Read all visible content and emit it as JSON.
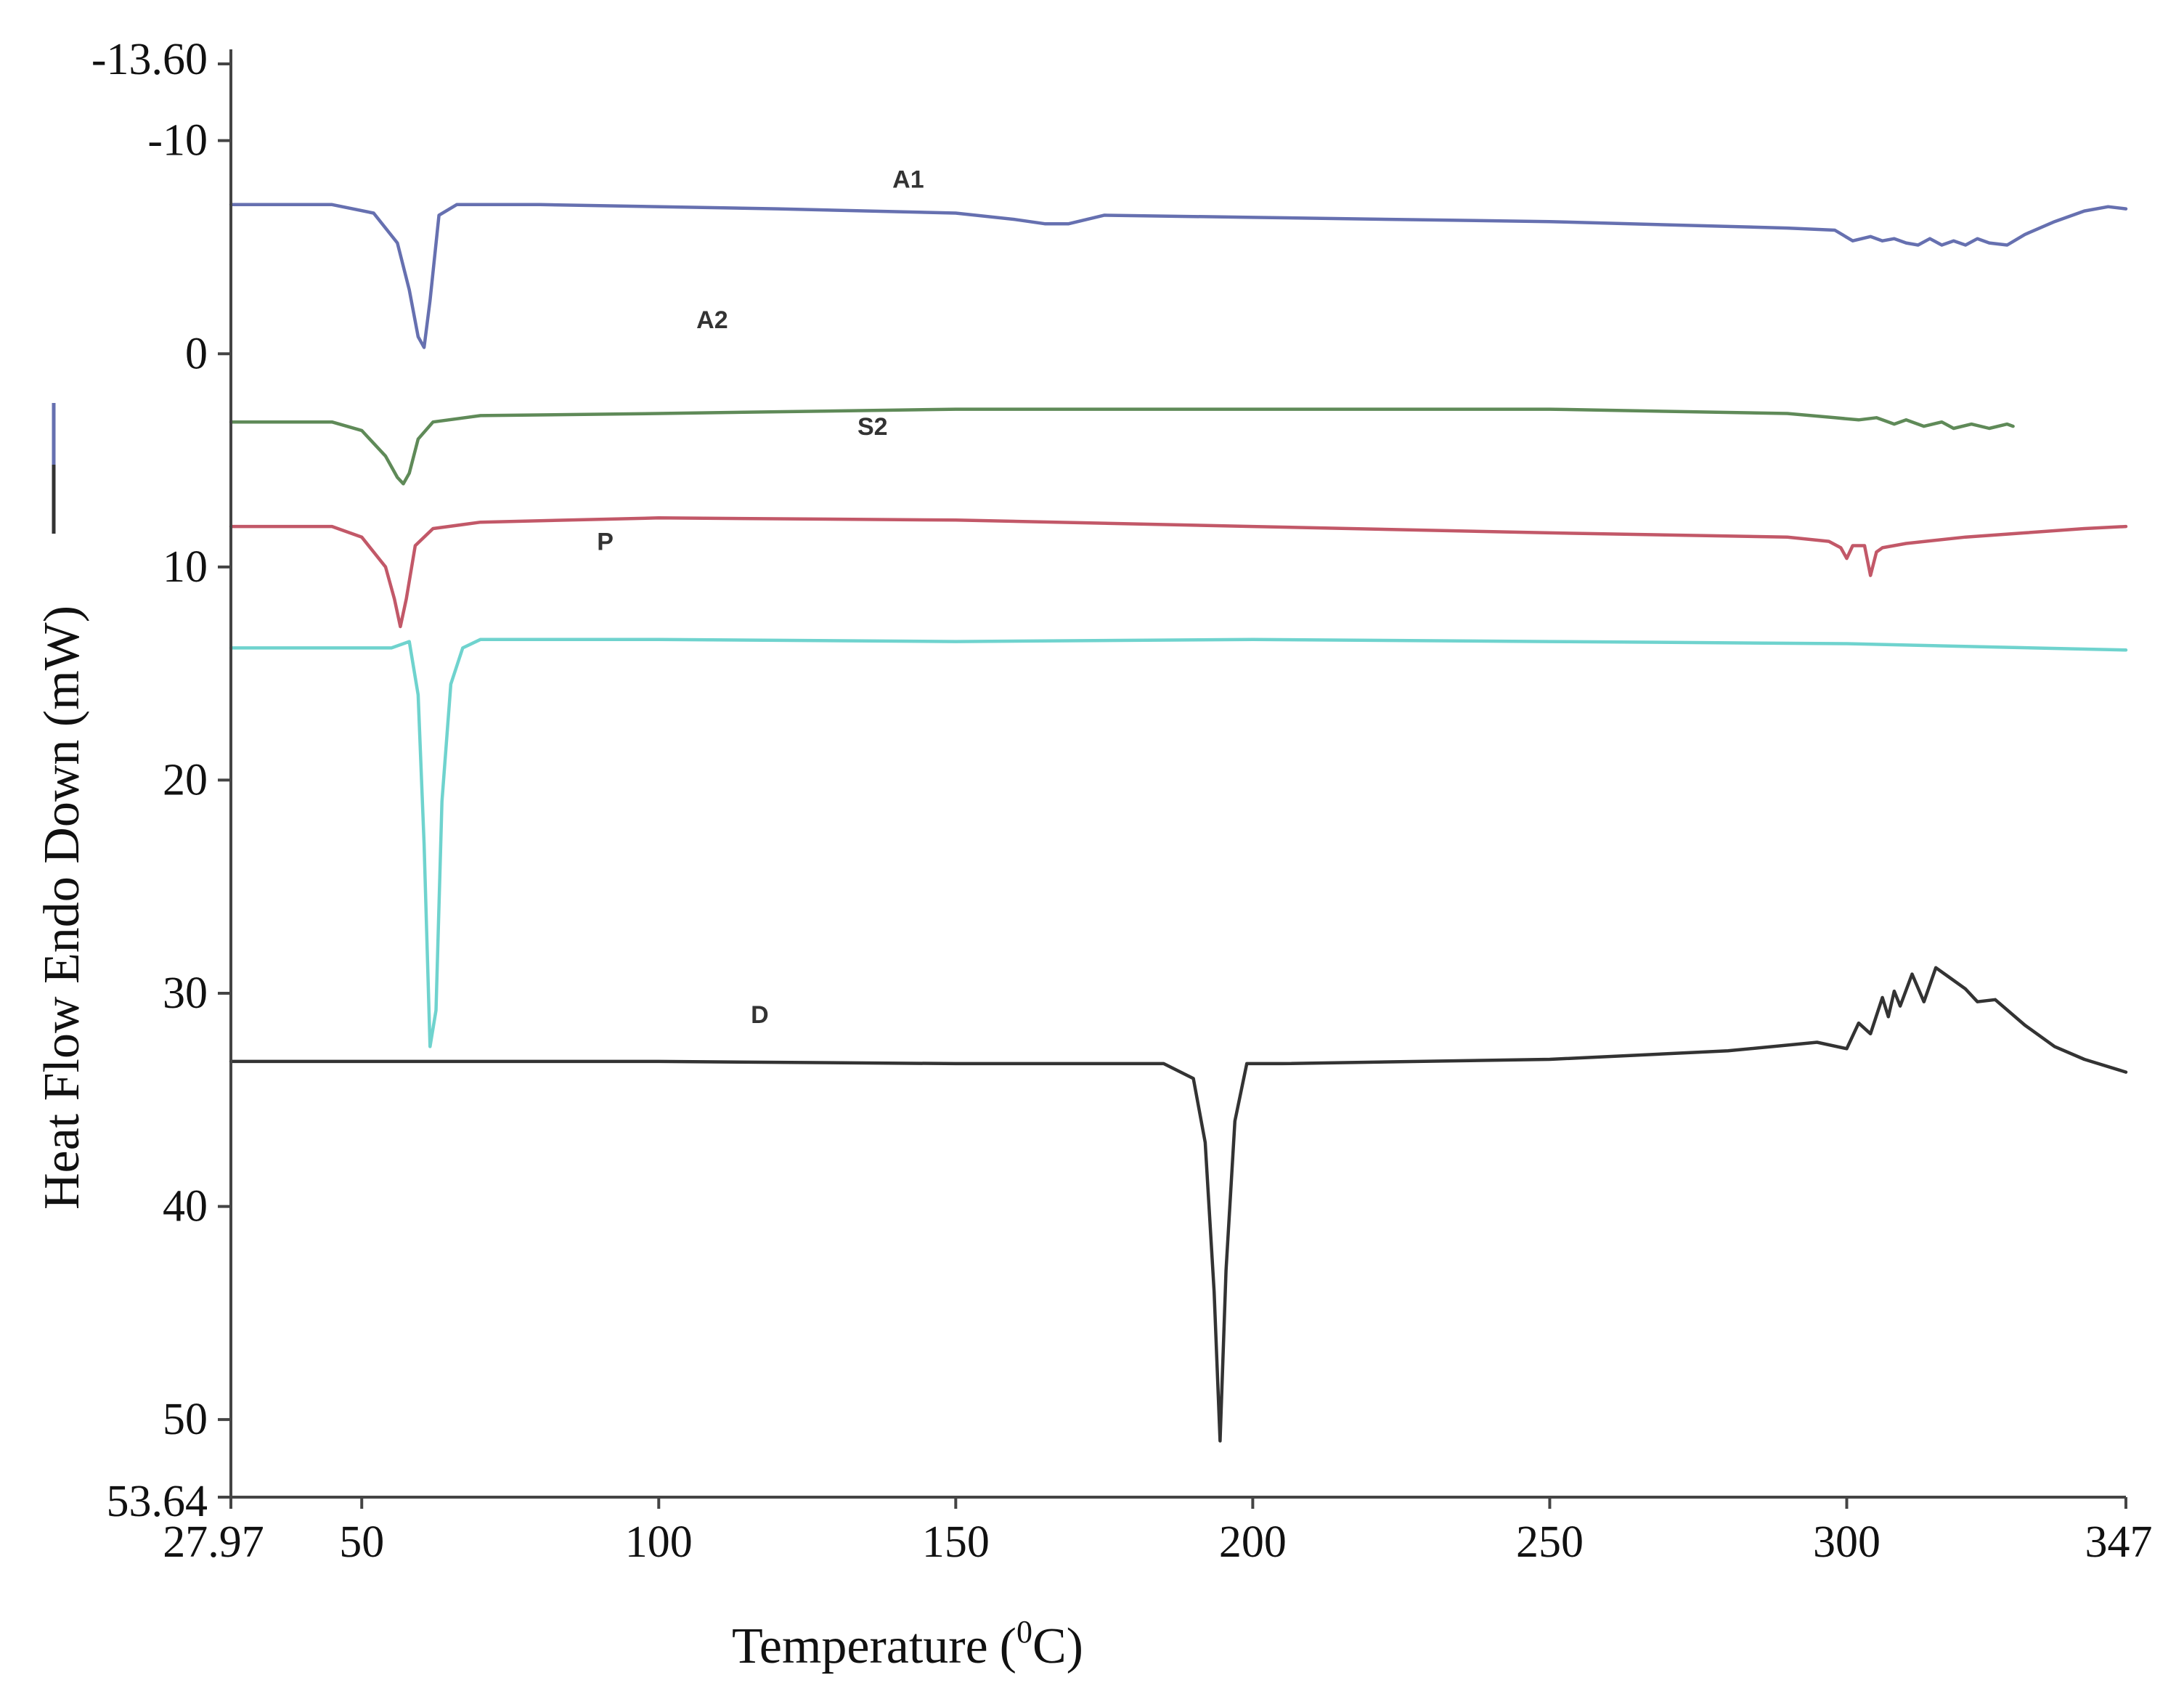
{
  "chart_data": {
    "type": "line",
    "title": "",
    "xlabel": "Temperature",
    "xlabel_unit": "(0C)",
    "xlabel_unit_parts": {
      "open": "(",
      "sup": "0",
      "close": "C)"
    },
    "ylabel": "Heat Flow Endo Down (mW)",
    "xlim": [
      27.97,
      347
    ],
    "ylim": [
      -13.6,
      53.64
    ],
    "y_inverted": true,
    "grid": false,
    "x_ticks": [
      "27.97",
      "50",
      "100",
      "150",
      "200",
      "250",
      "300",
      "347"
    ],
    "x_tick_values": [
      27.97,
      50,
      100,
      150,
      200,
      250,
      300,
      347
    ],
    "y_ticks": [
      "-13.60",
      "-10",
      "0",
      "10",
      "20",
      "30",
      "40",
      "50",
      "53.64"
    ],
    "y_tick_values": [
      -13.6,
      -10,
      0,
      10,
      20,
      30,
      40,
      50,
      53.64
    ],
    "series": [
      {
        "name": "A1",
        "color": "#6670b0",
        "label_at": [
          142,
          -7.8
        ],
        "x": [
          27.97,
          45,
          52,
          56,
          58,
          59.5,
          60.5,
          61.5,
          63,
          66,
          80,
          120,
          150,
          160,
          165,
          169,
          175,
          200,
          250,
          290,
          298,
          301,
          304,
          306,
          308,
          310,
          312,
          314,
          316,
          318,
          320,
          322,
          324,
          327,
          330,
          335,
          340,
          344,
          347
        ],
        "y": [
          -7,
          -7,
          -6.6,
          -5.2,
          -3,
          -0.8,
          -0.3,
          -2.5,
          -6.5,
          -7,
          -7,
          -6.8,
          -6.6,
          -6.3,
          -6.1,
          -6.1,
          -6.5,
          -6.4,
          -6.2,
          -5.9,
          -5.8,
          -5.3,
          -5.5,
          -5.3,
          -5.4,
          -5.2,
          -5.1,
          -5.4,
          -5.1,
          -5.3,
          -5.1,
          -5.4,
          -5.2,
          -5.1,
          -5.6,
          -6.2,
          -6.7,
          -6.9,
          -6.8
        ]
      },
      {
        "name": "A2",
        "color": "#5f8a58",
        "label_at": [
          109,
          -1.2
        ],
        "x": [
          27.97,
          45,
          50,
          54,
          56,
          57,
          58,
          59.5,
          62,
          70,
          100,
          150,
          200,
          250,
          290,
          298,
          302,
          305,
          308,
          310,
          313,
          316,
          318,
          321,
          324,
          327,
          328
        ],
        "y": [
          3.2,
          3.2,
          3.6,
          4.8,
          5.8,
          6.1,
          5.6,
          4,
          3.2,
          2.9,
          2.8,
          2.6,
          2.6,
          2.6,
          2.8,
          3,
          3.1,
          3,
          3.3,
          3.1,
          3.4,
          3.2,
          3.5,
          3.3,
          3.5,
          3.3,
          3.4
        ]
      },
      {
        "name": "S2",
        "color": "#c25868",
        "label_at": [
          136,
          3.8
        ],
        "x": [
          27.97,
          45,
          50,
          54,
          55.5,
          56.5,
          57.5,
          59,
          62,
          70,
          100,
          150,
          200,
          250,
          290,
          297,
          299,
          300,
          301,
          303,
          304,
          305,
          306,
          310,
          320,
          330,
          340,
          347
        ],
        "y": [
          8.1,
          8.1,
          8.6,
          10,
          11.5,
          12.8,
          11.5,
          9,
          8.2,
          7.9,
          7.7,
          7.8,
          8.1,
          8.4,
          8.6,
          8.8,
          9.1,
          9.6,
          9,
          9,
          10.4,
          9.3,
          9.1,
          8.9,
          8.6,
          8.4,
          8.2,
          8.1
        ]
      },
      {
        "name": "P",
        "color": "#6fd3ce",
        "label_at": [
          91,
          9.2
        ],
        "x": [
          27.97,
          55,
          58,
          59.5,
          60.5,
          61.5,
          62.5,
          63.5,
          65,
          67,
          70,
          100,
          150,
          200,
          250,
          300,
          347
        ],
        "y": [
          13.8,
          13.8,
          13.5,
          16,
          23,
          32.5,
          30.8,
          21,
          15.5,
          13.8,
          13.4,
          13.4,
          13.5,
          13.4,
          13.5,
          13.6,
          13.9
        ]
      },
      {
        "name": "D",
        "color": "#333333",
        "label_at": [
          117,
          31.4
        ],
        "x": [
          27.97,
          100,
          150,
          185,
          190,
          192,
          193.5,
          194.5,
          195.5,
          197,
          199,
          205,
          250,
          280,
          295,
          300,
          302,
          304,
          306,
          307,
          308,
          309,
          311,
          313,
          315,
          317,
          320,
          322,
          325,
          330,
          335,
          340,
          347
        ],
        "y": [
          33.2,
          33.2,
          33.3,
          33.3,
          34,
          37,
          44,
          51,
          43,
          36,
          33.3,
          33.3,
          33.1,
          32.7,
          32.3,
          32.6,
          31.4,
          31.9,
          30.2,
          31.1,
          29.9,
          30.6,
          29.1,
          30.4,
          28.8,
          29.2,
          29.8,
          30.4,
          30.3,
          31.5,
          32.5,
          33.1,
          33.7
        ]
      }
    ]
  }
}
